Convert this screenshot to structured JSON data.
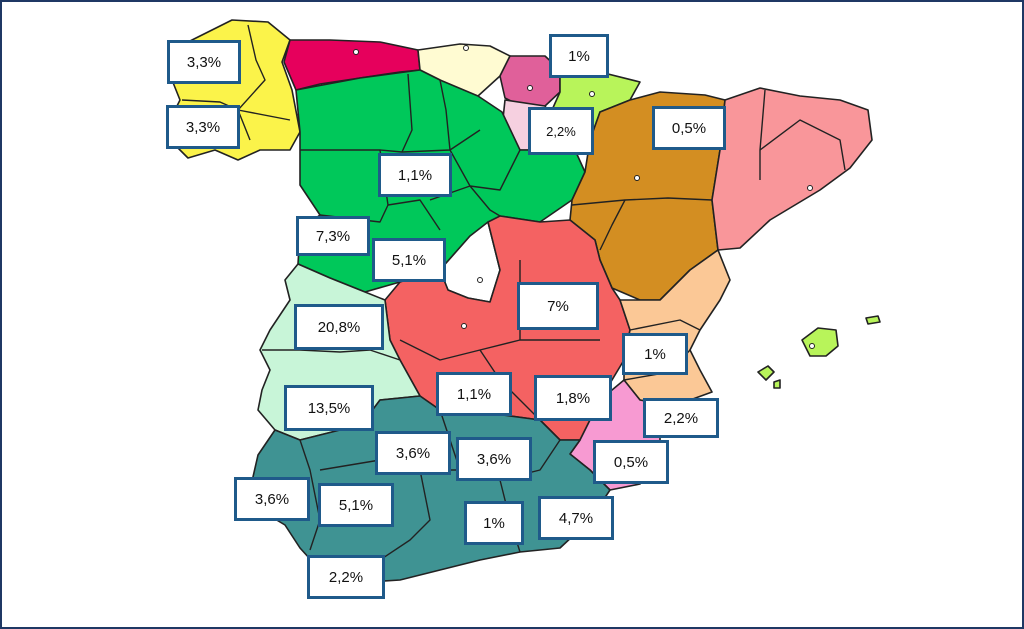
{
  "map": {
    "labels": [
      {
        "id": "galicia-north",
        "text": "3,3%"
      },
      {
        "id": "galicia-south",
        "text": "3,3%"
      },
      {
        "id": "pais-vasco",
        "text": "1%"
      },
      {
        "id": "navarra",
        "text": "2,2%"
      },
      {
        "id": "aragon",
        "text": "0,5%"
      },
      {
        "id": "castilla-leon-north",
        "text": "1,1%"
      },
      {
        "id": "castilla-leon-west",
        "text": "7,3%"
      },
      {
        "id": "castilla-leon-south",
        "text": "5,1%"
      },
      {
        "id": "cuenca",
        "text": "7%"
      },
      {
        "id": "caceres",
        "text": "20,8%"
      },
      {
        "id": "valencia",
        "text": "1%"
      },
      {
        "id": "ciudad-real",
        "text": "1,1%"
      },
      {
        "id": "albacete",
        "text": "1,8%"
      },
      {
        "id": "badajoz",
        "text": "13,5%"
      },
      {
        "id": "alicante",
        "text": "2,2%"
      },
      {
        "id": "jaen-west",
        "text": "3,6%"
      },
      {
        "id": "jaen-east",
        "text": "3,6%"
      },
      {
        "id": "murcia",
        "text": "0,5%"
      },
      {
        "id": "huelva",
        "text": "3,6%"
      },
      {
        "id": "sevilla",
        "text": "5,1%"
      },
      {
        "id": "granada",
        "text": "1%"
      },
      {
        "id": "almeria",
        "text": "4,7%"
      },
      {
        "id": "cadiz",
        "text": "2,2%"
      }
    ],
    "colors": {
      "galicia": "#fbf34a",
      "asturias": "#e6005c",
      "cantabria": "#fffbd2",
      "pais_vasco": "#e0609a",
      "navarra": "#b8f45a",
      "castilla_leon": "#00c85a",
      "la_rioja": "#f6d0e0",
      "aragon": "#d38e22",
      "cataluna": "#f9969a",
      "madrid": "#ffffff",
      "castilla_la_mancha": "#f46262",
      "valencia": "#fbc896",
      "murcia": "#f79ad2",
      "extremadura": "#c8f5d8",
      "andalucia": "#3f9393",
      "baleares": "#b8f45a",
      "label_border": "#1f5a8a"
    }
  }
}
